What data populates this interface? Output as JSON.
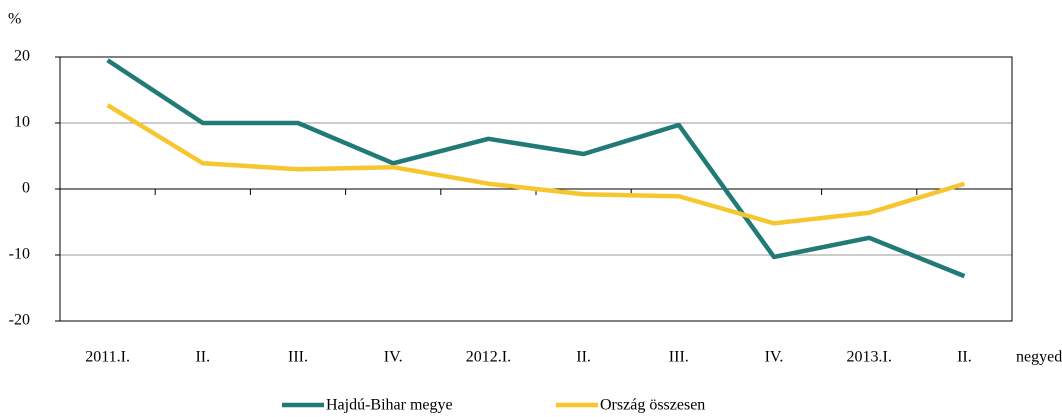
{
  "chart_data": {
    "type": "line",
    "y_label": "%",
    "x_label": "negyedév",
    "categories": [
      "2011.I.",
      "II.",
      "III.",
      "IV.",
      "2012.I.",
      "II.",
      "III.",
      "IV.",
      "2013.I.",
      "II."
    ],
    "series": [
      {
        "name": "Hajdú-Bihar megye",
        "color": "#217a75",
        "values": [
          19.5,
          10.0,
          10.0,
          3.9,
          7.6,
          5.3,
          9.7,
          -10.3,
          -7.4,
          -13.2
        ]
      },
      {
        "name": "Ország összesen",
        "color": "#f6c630",
        "values": [
          12.7,
          3.9,
          3.0,
          3.3,
          0.8,
          -0.8,
          -1.1,
          -5.2,
          -3.6,
          0.8
        ]
      }
    ],
    "ylim": [
      -20,
      20
    ],
    "yticks": [
      -20,
      -10,
      0,
      10,
      20
    ],
    "grid": true,
    "legend": "bottom"
  }
}
